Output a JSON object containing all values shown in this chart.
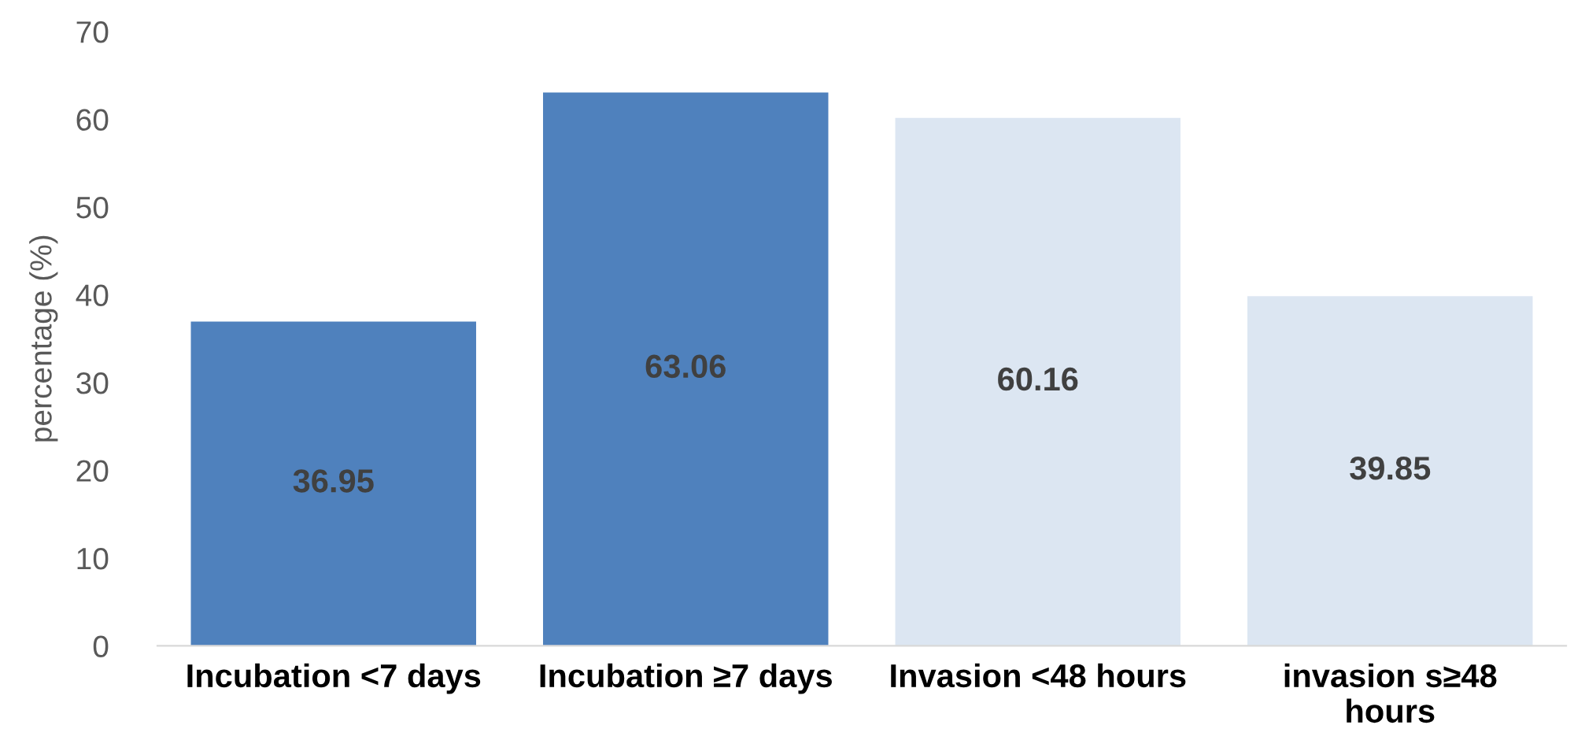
{
  "chart_data": {
    "type": "bar",
    "ylabel": "percentage (%)",
    "categories": [
      "Incubation <7 days",
      "Incubation ≥7 days",
      "Invasion <48 hours",
      "invasion s≥48\nhours"
    ],
    "values": [
      36.95,
      63.06,
      60.16,
      39.85
    ],
    "colors": [
      "#4f81bd",
      "#4f81bd",
      "#dce6f2",
      "#dce6f2"
    ],
    "ylim": [
      0,
      70
    ],
    "yticks": [
      0,
      10,
      20,
      30,
      40,
      50,
      60,
      70
    ],
    "data_labels": true,
    "grid": false,
    "legend": false
  }
}
